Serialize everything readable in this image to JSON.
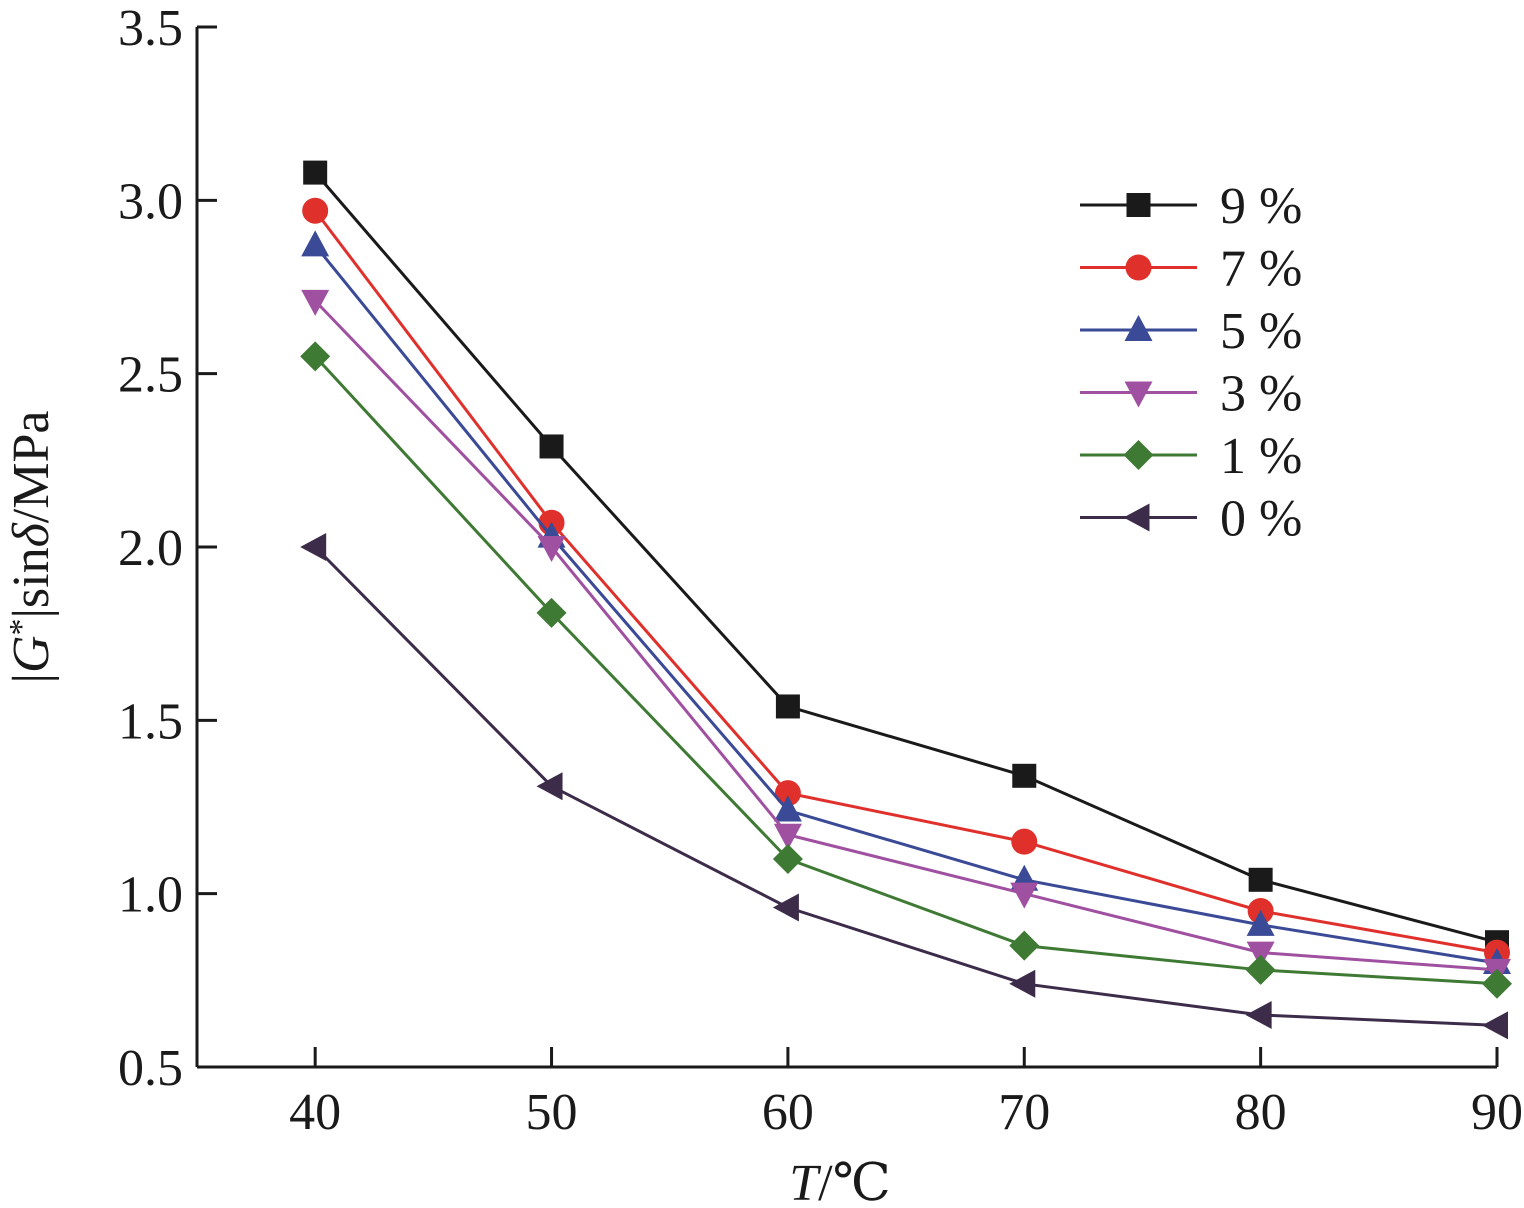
{
  "chart_data": {
    "type": "line",
    "x": [
      40,
      50,
      60,
      70,
      80,
      90
    ],
    "xlim": [
      35,
      90
    ],
    "ylim": [
      0.5,
      3.5
    ],
    "x_ticks": [
      "40",
      "50",
      "60",
      "70",
      "80",
      "90"
    ],
    "y_ticks": [
      "0.5",
      "1.0",
      "1.5",
      "2.0",
      "2.5",
      "3.0",
      "3.5"
    ],
    "xlabel": {
      "italic": "T",
      "rest": "/℃"
    },
    "ylabel": {
      "pre": "|",
      "italic1": "G",
      "sup": "*",
      "mid": "|sin",
      "italic2": "δ",
      "post": "/MPa"
    },
    "grid": false,
    "legend_position": "top-right",
    "series": [
      {
        "name": "9 %",
        "color": "#1a1a1a",
        "marker": "square",
        "values": [
          3.08,
          2.29,
          1.54,
          1.34,
          1.04,
          0.86
        ]
      },
      {
        "name": "7 %",
        "color": "#e0302b",
        "marker": "circle",
        "values": [
          2.97,
          2.07,
          1.29,
          1.15,
          0.95,
          0.83
        ]
      },
      {
        "name": "5 %",
        "color": "#3a4a96",
        "marker": "triangle-up",
        "values": [
          2.87,
          2.03,
          1.24,
          1.04,
          0.91,
          0.8
        ]
      },
      {
        "name": "3 %",
        "color": "#a050a0",
        "marker": "triangle-down",
        "values": [
          2.71,
          2.0,
          1.17,
          1.0,
          0.83,
          0.78
        ]
      },
      {
        "name": "1 %",
        "color": "#3e7a34",
        "marker": "diamond",
        "values": [
          2.55,
          1.81,
          1.1,
          0.85,
          0.78,
          0.74
        ]
      },
      {
        "name": "0 %",
        "color": "#3c2c4a",
        "marker": "triangle-left",
        "values": [
          2.0,
          1.31,
          0.96,
          0.74,
          0.65,
          0.62
        ]
      }
    ]
  }
}
